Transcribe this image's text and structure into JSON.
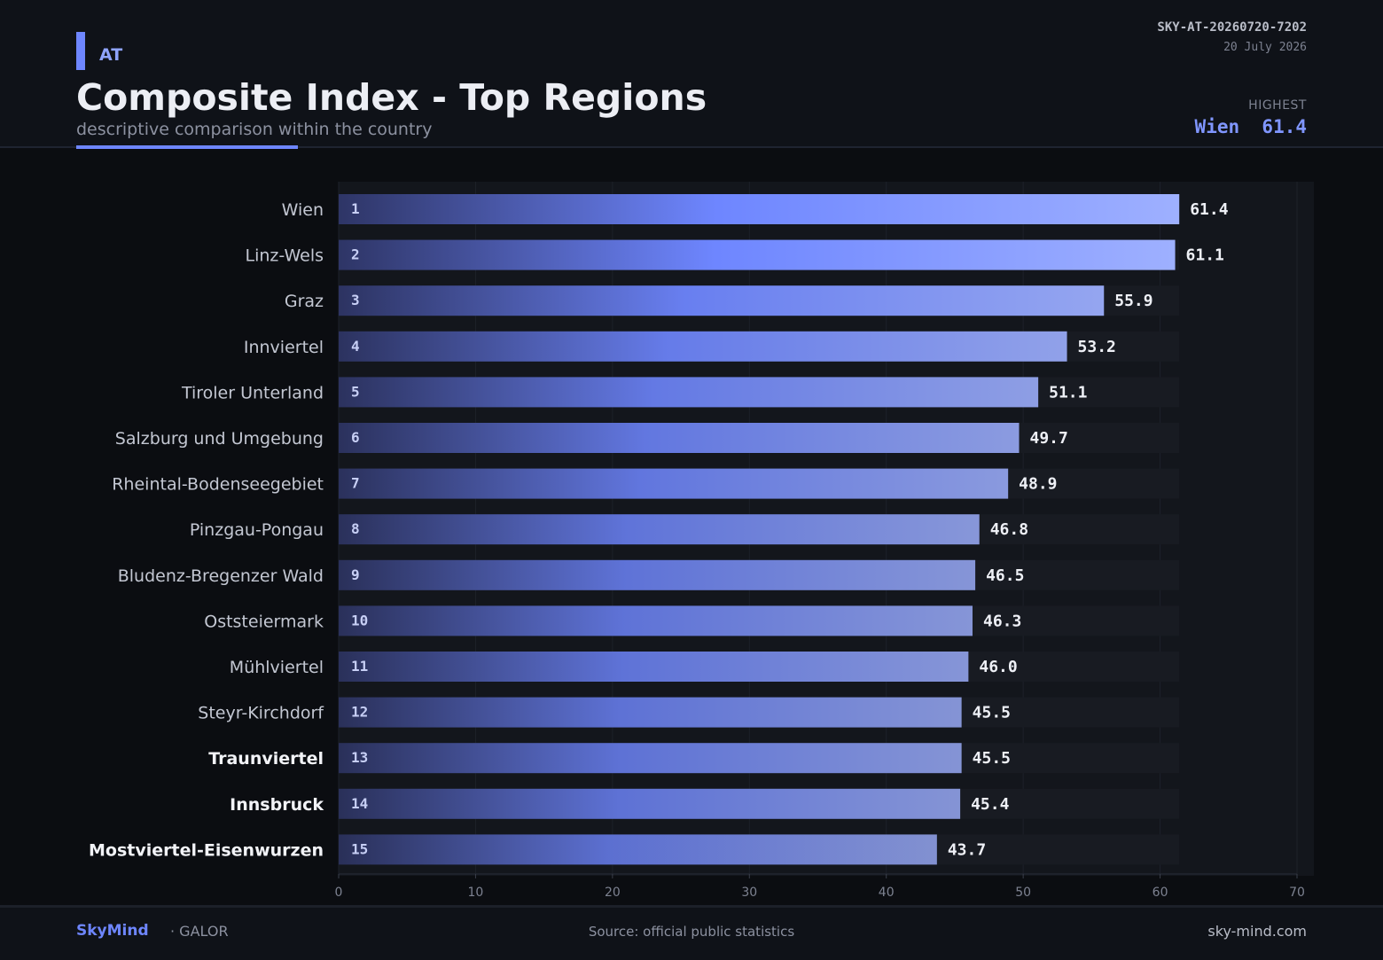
{
  "header": {
    "country_code": "AT",
    "title": "Composite Index - Top Regions",
    "subtitle": "descriptive comparison within the country",
    "doc_id": "SKY-AT-20260720-7202",
    "date": "20 July 2026",
    "highest_label": "HIGHEST",
    "highest_region": "Wien",
    "highest_value": "61.4"
  },
  "chart_data": {
    "type": "bar",
    "orientation": "horizontal",
    "categories": [
      "Wien",
      "Linz-Wels",
      "Graz",
      "Innviertel",
      "Tiroler Unterland",
      "Salzburg und Umgebung",
      "Rheintal-Bodenseegebiet",
      "Pinzgau-Pongau",
      "Bludenz-Bregenzer Wald",
      "Oststeiermark",
      "Mühlviertel",
      "Steyr-Kirchdorf",
      "Traunviertel",
      "Innsbruck",
      "Mostviertel-Eisenwurzen"
    ],
    "ranks": [
      1,
      2,
      3,
      4,
      5,
      6,
      7,
      8,
      9,
      10,
      11,
      12,
      13,
      14,
      15
    ],
    "values": [
      61.4,
      61.1,
      55.9,
      53.2,
      51.1,
      49.7,
      48.9,
      46.8,
      46.5,
      46.3,
      46.0,
      45.5,
      45.5,
      45.4,
      43.7
    ],
    "value_labels": [
      "61.4",
      "61.1",
      "55.9",
      "53.2",
      "51.1",
      "49.7",
      "48.9",
      "46.8",
      "46.5",
      "46.3",
      "46.0",
      "45.5",
      "45.5",
      "45.4",
      "43.7"
    ],
    "bold_categories": [
      "Traunviertel",
      "Innsbruck",
      "Mostviertel-Eisenwurzen"
    ],
    "xlim": [
      0,
      70
    ],
    "xticks": [
      0,
      10,
      20,
      30,
      40,
      50,
      60,
      70
    ],
    "grid": true,
    "colors": {
      "bar_start": "#2e3566",
      "bar_mid": "#6e86ff",
      "bar_end": "#9eb0ff",
      "track": "#181b22",
      "panel": "#13161c"
    }
  },
  "footer": {
    "brand": "SkyMind",
    "brand_sub": "· GALOR",
    "source": "Source: official public statistics",
    "site": "sky-mind.com"
  }
}
